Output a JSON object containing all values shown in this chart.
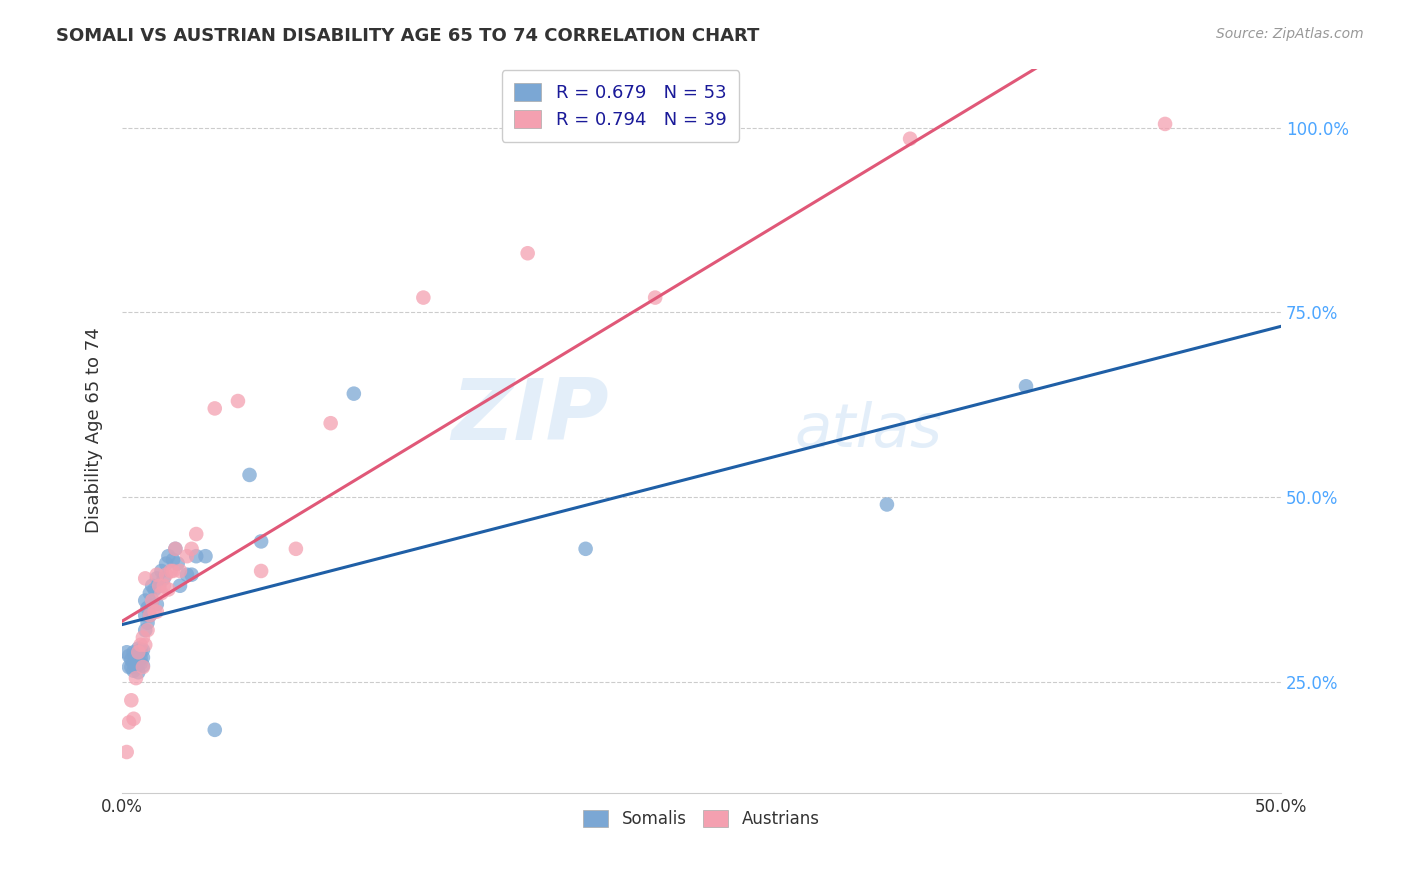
{
  "title": "SOMALI VS AUSTRIAN DISABILITY AGE 65 TO 74 CORRELATION CHART",
  "source": "Source: ZipAtlas.com",
  "ylabel": "Disability Age 65 to 74",
  "xlim": [
    0.0,
    0.5
  ],
  "ylim": [
    0.1,
    1.08
  ],
  "yticks_right": [
    0.25,
    0.5,
    0.75,
    1.0
  ],
  "ytick_labels_right": [
    "25.0%",
    "50.0%",
    "75.0%",
    "100.0%"
  ],
  "xticks": [
    0.0,
    0.5
  ],
  "xtick_labels": [
    "0.0%",
    "50.0%"
  ],
  "somali_R": 0.679,
  "somali_N": 53,
  "austrian_R": 0.794,
  "austrian_N": 39,
  "somali_color": "#7BA7D4",
  "austrian_color": "#F4A0B0",
  "somali_line_color": "#1F5FA6",
  "austrian_line_color": "#E05878",
  "background_color": "#ffffff",
  "grid_color": "#cccccc",
  "watermark_zip": "ZIP",
  "watermark_atlas": "atlas",
  "somali_x": [
    0.002,
    0.003,
    0.003,
    0.004,
    0.004,
    0.005,
    0.005,
    0.005,
    0.006,
    0.006,
    0.006,
    0.007,
    0.007,
    0.007,
    0.007,
    0.008,
    0.008,
    0.008,
    0.009,
    0.009,
    0.009,
    0.01,
    0.01,
    0.01,
    0.011,
    0.011,
    0.012,
    0.012,
    0.013,
    0.013,
    0.014,
    0.015,
    0.015,
    0.016,
    0.017,
    0.018,
    0.019,
    0.02,
    0.022,
    0.023,
    0.024,
    0.025,
    0.028,
    0.03,
    0.032,
    0.036,
    0.04,
    0.055,
    0.06,
    0.1,
    0.2,
    0.33,
    0.39
  ],
  "somali_y": [
    0.29,
    0.27,
    0.285,
    0.27,
    0.28,
    0.265,
    0.275,
    0.29,
    0.27,
    0.278,
    0.285,
    0.263,
    0.275,
    0.285,
    0.295,
    0.275,
    0.282,
    0.293,
    0.272,
    0.283,
    0.293,
    0.32,
    0.34,
    0.36,
    0.33,
    0.35,
    0.34,
    0.37,
    0.36,
    0.38,
    0.375,
    0.39,
    0.355,
    0.38,
    0.4,
    0.39,
    0.41,
    0.42,
    0.415,
    0.43,
    0.41,
    0.38,
    0.395,
    0.395,
    0.42,
    0.42,
    0.185,
    0.53,
    0.44,
    0.64,
    0.43,
    0.49,
    0.65
  ],
  "austrian_x": [
    0.002,
    0.003,
    0.004,
    0.005,
    0.006,
    0.007,
    0.008,
    0.009,
    0.009,
    0.01,
    0.01,
    0.011,
    0.012,
    0.013,
    0.014,
    0.015,
    0.015,
    0.016,
    0.017,
    0.018,
    0.019,
    0.02,
    0.021,
    0.022,
    0.023,
    0.025,
    0.028,
    0.03,
    0.032,
    0.04,
    0.05,
    0.06,
    0.075,
    0.09,
    0.13,
    0.175,
    0.23,
    0.34,
    0.45
  ],
  "austrian_y": [
    0.155,
    0.195,
    0.225,
    0.2,
    0.255,
    0.29,
    0.3,
    0.27,
    0.31,
    0.3,
    0.39,
    0.32,
    0.34,
    0.36,
    0.345,
    0.345,
    0.395,
    0.38,
    0.37,
    0.38,
    0.395,
    0.375,
    0.4,
    0.4,
    0.43,
    0.4,
    0.42,
    0.43,
    0.45,
    0.62,
    0.63,
    0.4,
    0.43,
    0.6,
    0.77,
    0.83,
    0.77,
    0.985,
    1.005
  ]
}
